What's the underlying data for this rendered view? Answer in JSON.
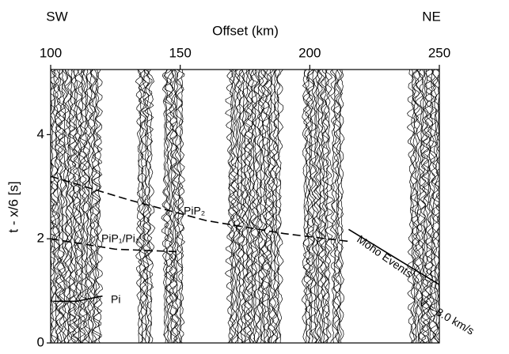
{
  "chart_data": {
    "type": "seismic",
    "title_left": "SW",
    "title_right": "NE",
    "xlabel": "Offset (km)",
    "ylabel": "t - x/6 [s]",
    "xlim": [
      100,
      250
    ],
    "xticks": [
      100,
      150,
      200,
      250
    ],
    "ylim": [
      0,
      5.25
    ],
    "yticks": [
      0,
      2,
      4
    ],
    "color": "#000000",
    "trace_bands": [
      [
        100,
        119
      ],
      [
        134,
        139
      ],
      [
        144,
        151
      ],
      [
        169,
        189
      ],
      [
        198,
        208
      ],
      [
        209,
        213
      ],
      [
        239,
        250
      ]
    ],
    "series": [
      {
        "name": "Pi",
        "style": "solid",
        "x": [
          101,
          110,
          120
        ],
        "values": [
          0.8,
          0.8,
          0.9
        ]
      },
      {
        "name": "PiP₁/Pi₁",
        "style": "dashed",
        "x": [
          100,
          125,
          150
        ],
        "values": [
          2.0,
          1.8,
          1.75
        ]
      },
      {
        "name": "PiP₂",
        "style": "dashed",
        "x": [
          100,
          130,
          160,
          190,
          215
        ],
        "values": [
          3.2,
          2.75,
          2.35,
          2.1,
          1.95
        ]
      },
      {
        "name": "Moho Events",
        "style": "solid",
        "x": [
          215,
          250
        ],
        "values": [
          2.18,
          1.12
        ]
      }
    ],
    "annotation": "V ≈ 8.0 km/s"
  }
}
